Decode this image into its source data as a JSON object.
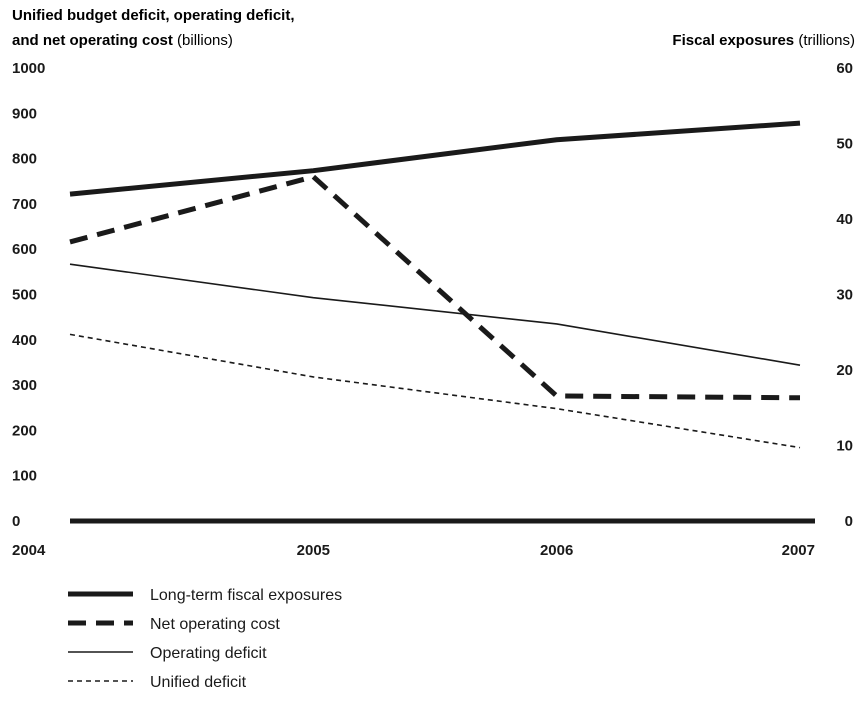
{
  "chart_data": {
    "type": "line",
    "title_left": {
      "line1": "Unified budget deficit, operating deficit,",
      "line2_bold": "and net operating cost",
      "line2_unit": " (billions)"
    },
    "title_right": {
      "bold": "Fiscal exposures",
      "unit": " (trillions)"
    },
    "categories": [
      "2004",
      "2005",
      "2006",
      "2007"
    ],
    "y_left": {
      "min": 0,
      "max": 1000,
      "ticks": [
        0,
        100,
        200,
        300,
        400,
        500,
        600,
        700,
        800,
        900,
        1000
      ]
    },
    "y_right": {
      "min": 0,
      "max": 60,
      "ticks": [
        0,
        10,
        20,
        30,
        40,
        50,
        60
      ]
    },
    "grid": false,
    "legend_position": "bottom-left",
    "series": [
      {
        "name": "Long-term fiscal exposures",
        "axis": "right",
        "style": "thick-solid",
        "values": [
          43.3,
          46.4,
          50.5,
          52.7
        ]
      },
      {
        "name": "Net operating cost",
        "axis": "left",
        "style": "thick-dashed",
        "values": [
          616,
          760,
          276,
          272
        ]
      },
      {
        "name": "Operating deficit",
        "axis": "left",
        "style": "thin-solid",
        "values": [
          567,
          493,
          435,
          344
        ]
      },
      {
        "name": "Unified deficit",
        "axis": "left",
        "style": "thin-dashed",
        "values": [
          412,
          318,
          248,
          162
        ]
      }
    ]
  }
}
